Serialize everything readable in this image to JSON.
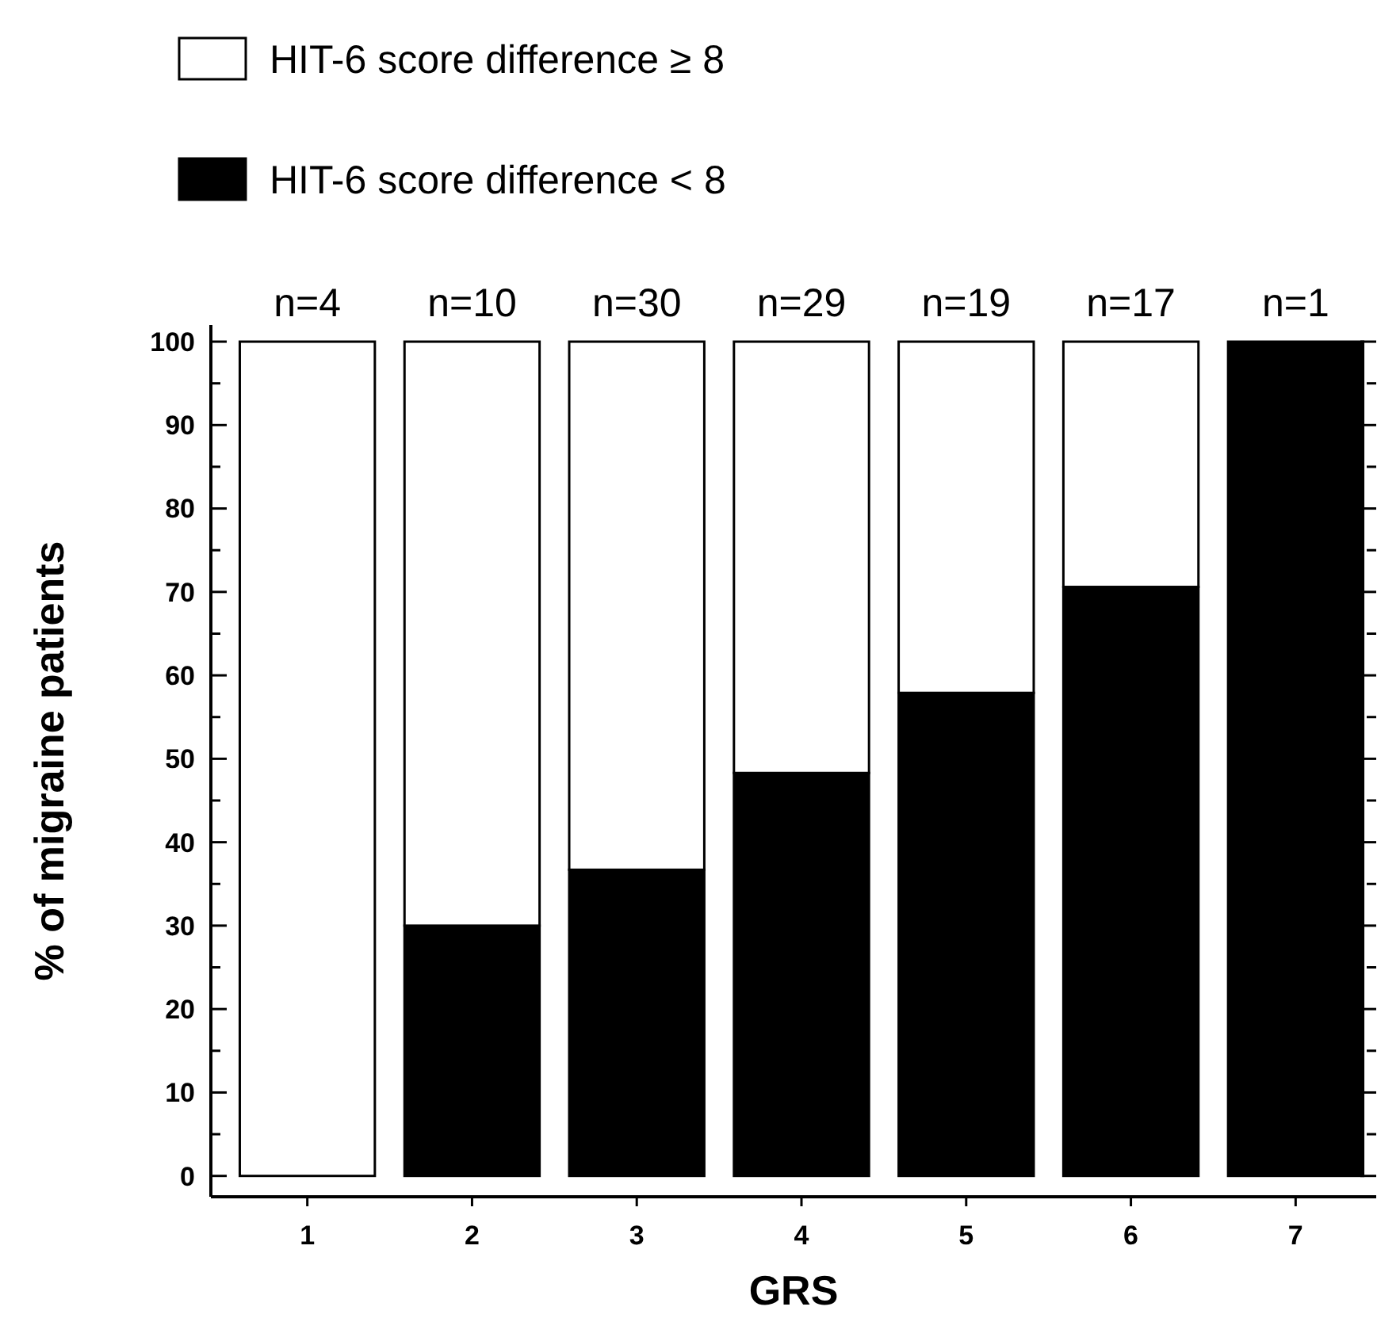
{
  "chart_data": {
    "type": "bar",
    "stacked": true,
    "xlabel": "GRS",
    "ylabel": "% of migraine patients",
    "categories": [
      "1",
      "2",
      "3",
      "4",
      "5",
      "6",
      "7"
    ],
    "series": [
      {
        "name": "HIT-6 score difference < 8",
        "color": "#000000",
        "values": [
          0,
          30,
          36.7,
          48.3,
          57.9,
          70.6,
          100
        ]
      },
      {
        "name": "HIT-6 score difference ≥ 8",
        "color": "#ffffff",
        "values": [
          100,
          70,
          63.3,
          51.7,
          42.1,
          29.4,
          0
        ]
      }
    ],
    "ylim": [
      -2.5,
      102
    ],
    "yticks": [
      0,
      {
        "value": 5,
        "label": null
      },
      10,
      {
        "value": 15,
        "label": null
      },
      20,
      {
        "value": 25,
        "label": null
      },
      30,
      {
        "value": 35,
        "label": null
      },
      40,
      {
        "value": 45,
        "label": null
      },
      50,
      {
        "value": 55,
        "label": null
      },
      60,
      {
        "value": 65,
        "label": null
      },
      70,
      {
        "value": 75,
        "label": null
      },
      80,
      {
        "value": 85,
        "label": null
      },
      90,
      {
        "value": 95,
        "label": null
      },
      100
    ],
    "legend": "top left",
    "annotations": [
      {
        "text": "n=4",
        "x": "1",
        "y": 100
      },
      {
        "text": "n=10",
        "x": "2",
        "y": 100
      },
      {
        "text": "n=30",
        "x": "3",
        "y": 100
      },
      {
        "text": "n=29",
        "x": "4",
        "y": 100
      },
      {
        "text": "n=19",
        "x": "5",
        "y": 100
      },
      {
        "text": "n=17",
        "x": "6",
        "y": 100
      },
      {
        "text": "n=1",
        "x": "7",
        "y": 100
      }
    ]
  }
}
